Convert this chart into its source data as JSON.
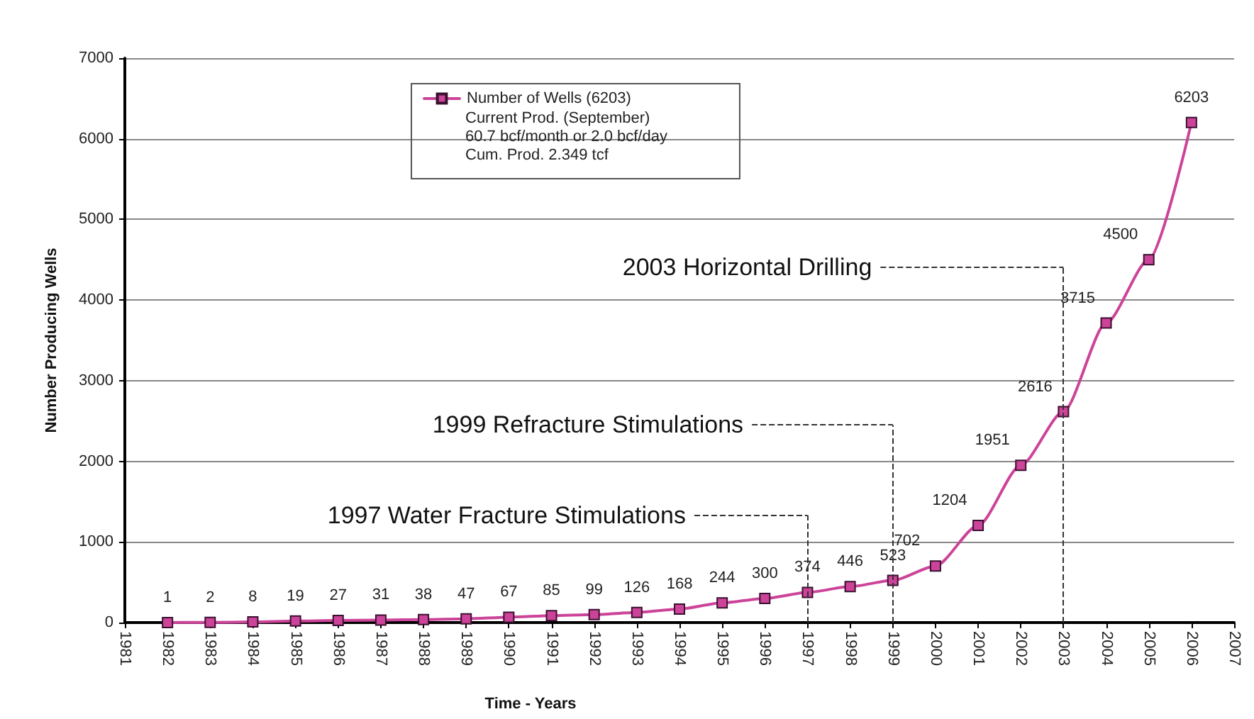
{
  "chart_data": {
    "type": "line",
    "xlabel": "Time - Years",
    "ylabel": "Number Producing Wells",
    "x": [
      1982,
      1983,
      1984,
      1985,
      1986,
      1987,
      1988,
      1989,
      1990,
      1991,
      1992,
      1993,
      1994,
      1995,
      1996,
      1997,
      1998,
      1999,
      2000,
      2001,
      2002,
      2003,
      2004,
      2005,
      2006
    ],
    "series": [
      {
        "name": "Number of Wells (6203)",
        "color": "#cc4499",
        "values": [
          1,
          2,
          8,
          19,
          27,
          31,
          38,
          47,
          67,
          85,
          99,
          126,
          168,
          244,
          300,
          374,
          446,
          523,
          702,
          1204,
          1951,
          2616,
          3715,
          4500,
          6203
        ]
      }
    ],
    "xlim": [
      1981,
      2007
    ],
    "xticks": [
      1981,
      1982,
      1983,
      1984,
      1985,
      1986,
      1987,
      1988,
      1989,
      1990,
      1991,
      1992,
      1993,
      1994,
      1995,
      1996,
      1997,
      1998,
      1999,
      2000,
      2001,
      2002,
      2003,
      2004,
      2005,
      2006,
      2007
    ],
    "ylim": [
      0,
      7000
    ],
    "yticks": [
      0,
      1000,
      2000,
      3000,
      4000,
      5000,
      6000,
      7000
    ],
    "grid": "y",
    "legend": "top left",
    "marker": "square",
    "line_style": "solid",
    "data_labels": true,
    "annotations": [
      "Current Prod. (September)",
      "60.7 bcf/month or 2.0 bcf/day",
      "Cum. Prod. 2.349 tcf"
    ],
    "ref_lines": [
      {
        "axis": "x",
        "value": 1997,
        "label": "1997 Water Fracture Stimulations",
        "line_style": "dashed"
      },
      {
        "axis": "x",
        "value": 1999,
        "label": "1999 Refracture Stimulations",
        "line_style": "dashed"
      },
      {
        "axis": "x",
        "value": 2003,
        "label": "2003 Horizontal Drilling",
        "line_style": "dashed"
      }
    ]
  }
}
